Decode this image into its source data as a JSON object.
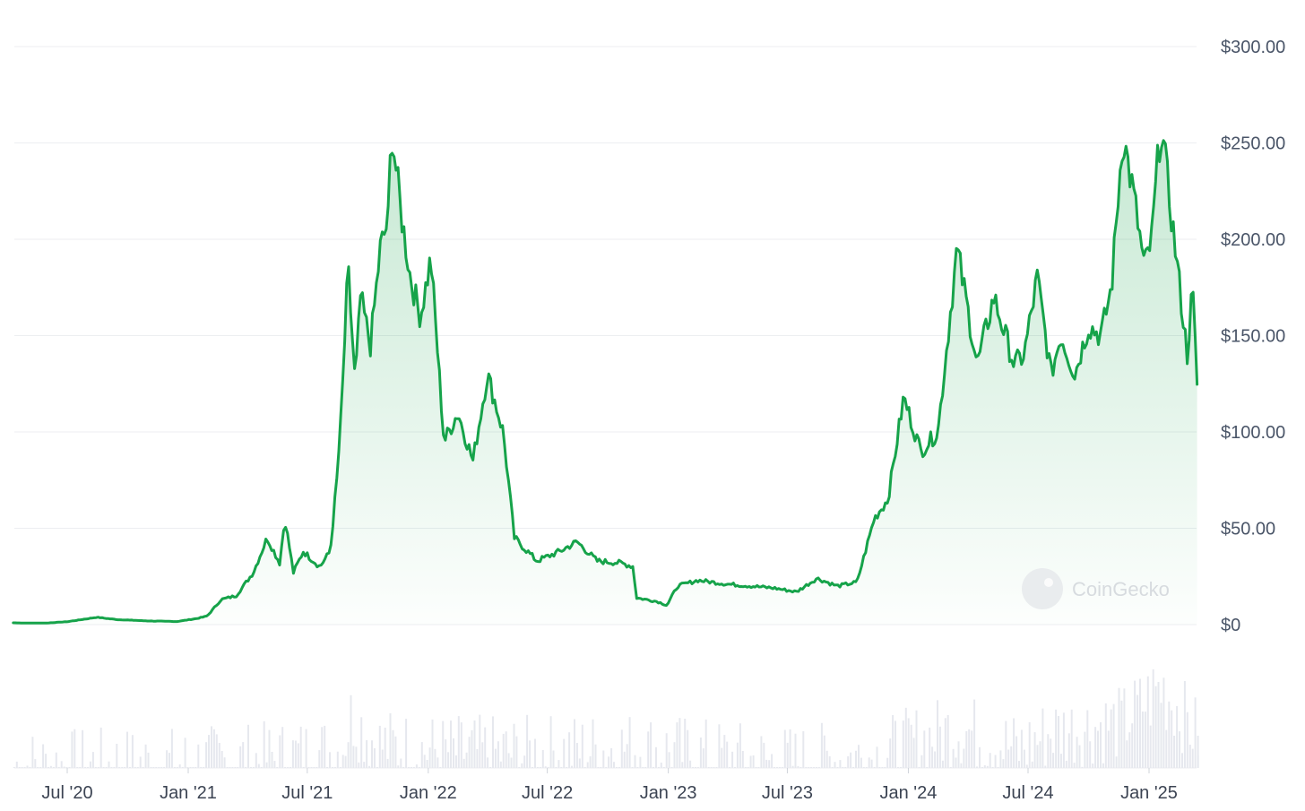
{
  "chart_data": {
    "type": "area",
    "title": "",
    "xlabel": "",
    "ylabel": "",
    "ylim": [
      0,
      300
    ],
    "y_ticks": [
      "$300.00",
      "$250.00",
      "$200.00",
      "$150.00",
      "$100.00",
      "$50.00",
      "$0"
    ],
    "x_ticks": [
      "Jul '20",
      "Jan '21",
      "Jul '21",
      "Jan '22",
      "Jul '22",
      "Jan '23",
      "Jul '23",
      "Jan '24",
      "Jul '24",
      "Jan '25"
    ],
    "grid": true,
    "colors": {
      "line": "#16a34a",
      "fill": "#16a34a",
      "grid": "#eceef1",
      "volume": "#e6e8ee"
    },
    "series": [
      {
        "values": [
          [
            "2020-04-10",
            0.95
          ],
          [
            "2020-05-01",
            0.8
          ],
          [
            "2020-06-01",
            0.85
          ],
          [
            "2020-07-01",
            1.5
          ],
          [
            "2020-08-15",
            3.8
          ],
          [
            "2020-09-15",
            2.6
          ],
          [
            "2020-11-01",
            1.9
          ],
          [
            "2020-12-15",
            1.6
          ],
          [
            "2021-01-15",
            3.2
          ],
          [
            "2021-01-30",
            4.5
          ],
          [
            "2021-02-20",
            13.0
          ],
          [
            "2021-03-15",
            15.0
          ],
          [
            "2021-04-10",
            27.0
          ],
          [
            "2021-05-01",
            45.0
          ],
          [
            "2021-05-20",
            32.0
          ],
          [
            "2021-05-28",
            55.0
          ],
          [
            "2021-06-10",
            27.0
          ],
          [
            "2021-06-25",
            38.0
          ],
          [
            "2021-07-20",
            30.0
          ],
          [
            "2021-08-05",
            38.0
          ],
          [
            "2021-08-15",
            75.0
          ],
          [
            "2021-08-22",
            110.0
          ],
          [
            "2021-09-01",
            185.0
          ],
          [
            "2021-09-12",
            125.0
          ],
          [
            "2021-09-20",
            170.0
          ],
          [
            "2021-10-05",
            145.0
          ],
          [
            "2021-10-20",
            195.0
          ],
          [
            "2021-11-01",
            210.0
          ],
          [
            "2021-11-06",
            258.0
          ],
          [
            "2021-11-20",
            215.0
          ],
          [
            "2021-12-05",
            180.0
          ],
          [
            "2021-12-20",
            160.0
          ],
          [
            "2022-01-05",
            190.0
          ],
          [
            "2022-01-25",
            95.0
          ],
          [
            "2022-02-15",
            110.0
          ],
          [
            "2022-03-10",
            85.0
          ],
          [
            "2022-04-01",
            130.0
          ],
          [
            "2022-04-25",
            100.0
          ],
          [
            "2022-05-12",
            45.0
          ],
          [
            "2022-06-15",
            33.0
          ],
          [
            "2022-07-20",
            38.0
          ],
          [
            "2022-08-15",
            43.0
          ],
          [
            "2022-09-15",
            33.0
          ],
          [
            "2022-10-20",
            32.0
          ],
          [
            "2022-11-10",
            30.0
          ],
          [
            "2022-11-12",
            14.0
          ],
          [
            "2022-12-15",
            12.0
          ],
          [
            "2022-12-30",
            10.0
          ],
          [
            "2023-01-15",
            20.0
          ],
          [
            "2023-02-15",
            23.0
          ],
          [
            "2023-04-01",
            21.0
          ],
          [
            "2023-06-10",
            19.0
          ],
          [
            "2023-07-15",
            17.0
          ],
          [
            "2023-08-15",
            24.0
          ],
          [
            "2023-09-15",
            20.0
          ],
          [
            "2023-10-15",
            22.0
          ],
          [
            "2023-11-10",
            55.0
          ],
          [
            "2023-12-01",
            65.0
          ],
          [
            "2023-12-25",
            118.0
          ],
          [
            "2024-01-20",
            90.0
          ],
          [
            "2024-02-15",
            100.0
          ],
          [
            "2024-03-15",
            195.0
          ],
          [
            "2024-04-15",
            135.0
          ],
          [
            "2024-05-10",
            170.0
          ],
          [
            "2024-06-10",
            135.0
          ],
          [
            "2024-06-25",
            140.0
          ],
          [
            "2024-07-15",
            180.0
          ],
          [
            "2024-08-05",
            130.0
          ],
          [
            "2024-08-20",
            150.0
          ],
          [
            "2024-09-10",
            130.0
          ],
          [
            "2024-10-01",
            155.0
          ],
          [
            "2024-10-20",
            150.0
          ],
          [
            "2024-11-05",
            175.0
          ],
          [
            "2024-11-22",
            255.0
          ],
          [
            "2024-12-10",
            220.0
          ],
          [
            "2024-12-25",
            185.0
          ],
          [
            "2025-01-05",
            200.0
          ],
          [
            "2025-01-19",
            260.0
          ],
          [
            "2025-02-10",
            195.0
          ],
          [
            "2025-02-28",
            140.0
          ],
          [
            "2025-03-08",
            175.0
          ],
          [
            "2025-03-15",
            125.0
          ]
        ]
      }
    ],
    "volume": {
      "values": [
        [
          "2020-04-10",
          0.02
        ],
        [
          "2021-01-01",
          0.05
        ],
        [
          "2021-05-15",
          0.12
        ],
        [
          "2021-08-20",
          0.22
        ],
        [
          "2021-09-05",
          0.65
        ],
        [
          "2021-10-15",
          0.28
        ],
        [
          "2022-01-20",
          0.2
        ],
        [
          "2022-05-12",
          0.18
        ],
        [
          "2022-11-10",
          0.25
        ],
        [
          "2023-06-15",
          0.06
        ],
        [
          "2023-11-15",
          0.15
        ],
        [
          "2024-03-15",
          0.5
        ],
        [
          "2024-06-15",
          0.22
        ],
        [
          "2024-08-05",
          0.45
        ],
        [
          "2024-11-20",
          0.55
        ],
        [
          "2025-01-19",
          1.0
        ],
        [
          "2025-03-15",
          0.4
        ]
      ]
    },
    "watermark": "CoinGecko"
  }
}
